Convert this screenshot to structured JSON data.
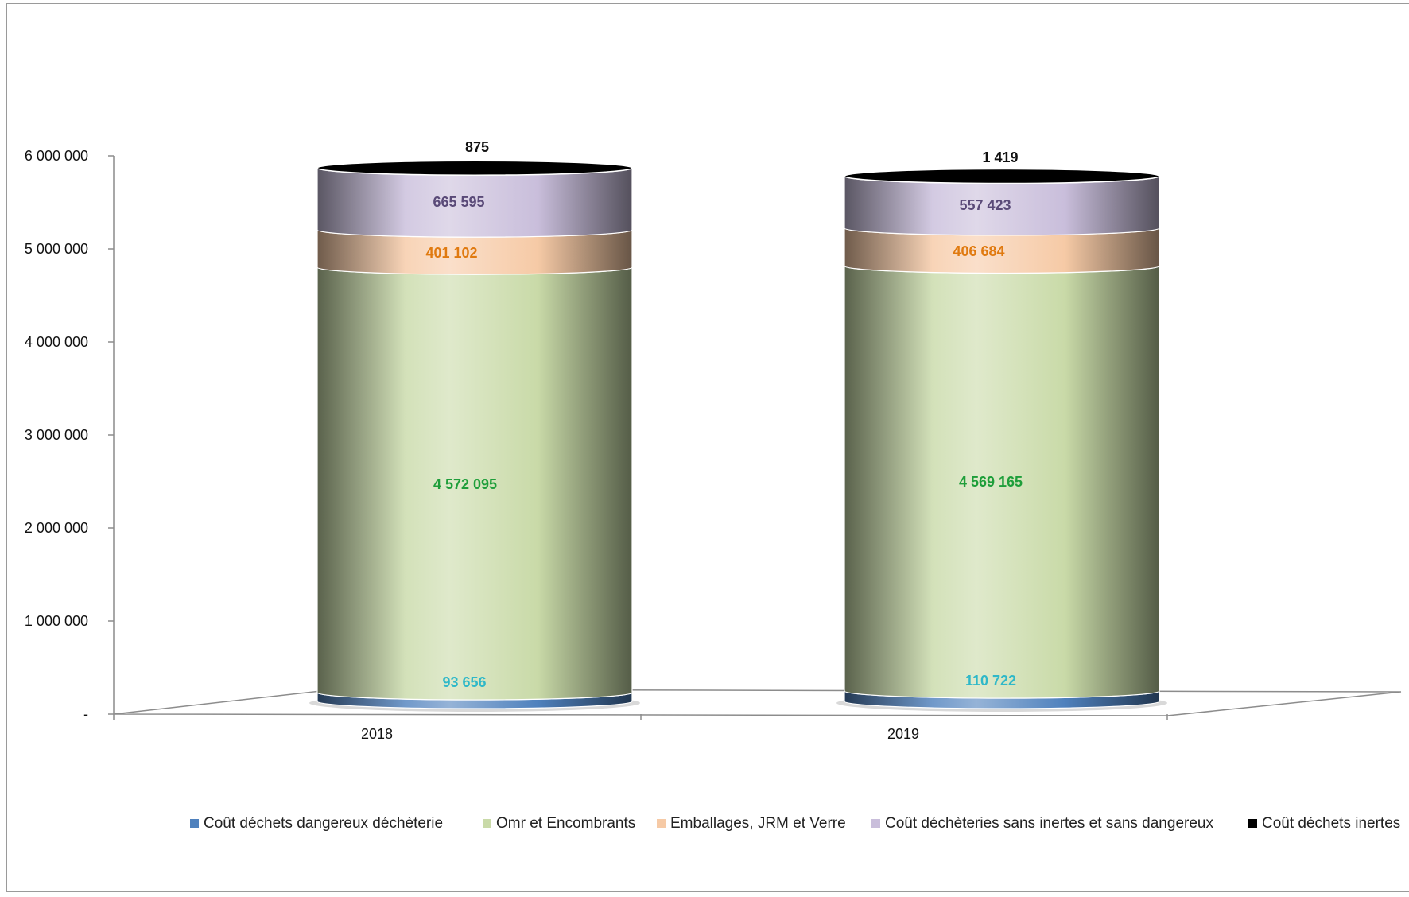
{
  "chart_data": {
    "type": "bar",
    "stacked": true,
    "style": "3d-cylinder",
    "categories": [
      "2018",
      "2019"
    ],
    "ylim": [
      0,
      6000000
    ],
    "yticks": [
      {
        "v": 0,
        "label": "-"
      },
      {
        "v": 1000000,
        "label": "1 000 000"
      },
      {
        "v": 2000000,
        "label": "2 000 000"
      },
      {
        "v": 3000000,
        "label": "3 000 000"
      },
      {
        "v": 4000000,
        "label": "4 000 000"
      },
      {
        "v": 5000000,
        "label": "5 000 000"
      },
      {
        "v": 6000000,
        "label": "6 000 000"
      }
    ],
    "legend_position": "bottom",
    "series": [
      {
        "name": "Coût déchets dangereux déchèterie",
        "values": [
          93656,
          110722
        ],
        "labels": [
          "93 656",
          "110 722"
        ],
        "color": "#4f81bd",
        "label_color": "#2fb8c8"
      },
      {
        "name": "Omr et Encombrants",
        "values": [
          4572095,
          4569165
        ],
        "labels": [
          "4 572 095",
          "4 569 165"
        ],
        "color": "#c9daa8",
        "label_color": "#1e9e3a"
      },
      {
        "name": "Emballages, JRM et Verre",
        "values": [
          401102,
          406684
        ],
        "labels": [
          "401 102",
          "406 684"
        ],
        "color": "#f6caa6",
        "label_color": "#e07a10"
      },
      {
        "name": "Coût déchèteries sans inertes et sans dangereux",
        "values": [
          665595,
          557423
        ],
        "labels": [
          "665 595",
          "557 423"
        ],
        "color": "#c9bedb",
        "label_color": "#5a4a78"
      },
      {
        "name": "Coût déchets inertes",
        "values": [
          875,
          1419
        ],
        "labels": [
          "875",
          "1 419"
        ],
        "color": "#000000",
        "label_color": "#111111"
      }
    ]
  }
}
